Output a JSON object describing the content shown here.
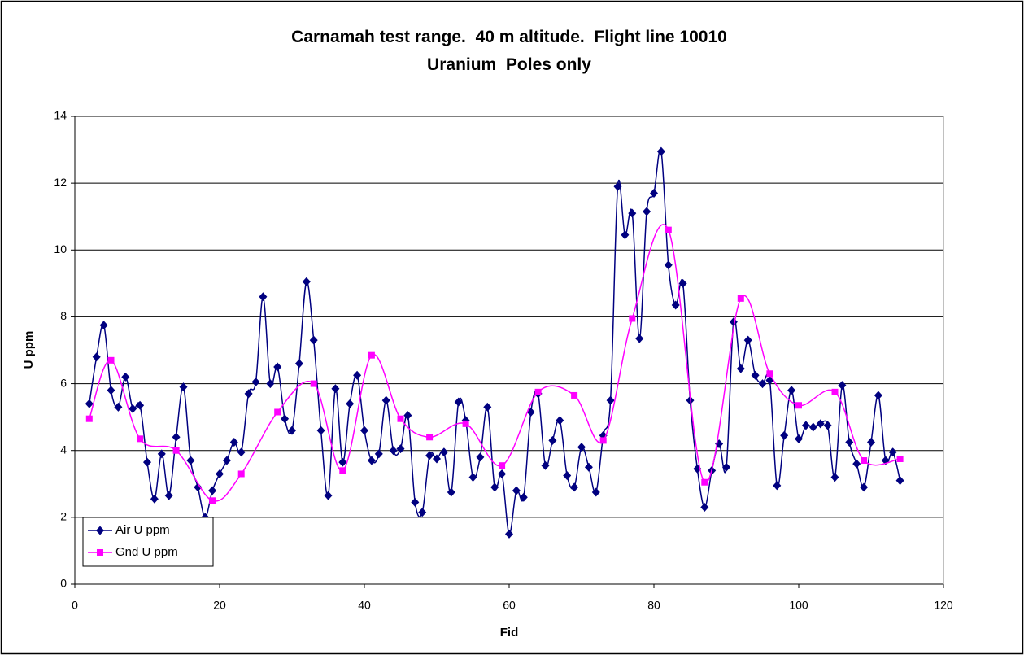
{
  "chart_data": {
    "type": "line",
    "title": "Carnamah test range.  40 m altitude.  Flight line 10010",
    "subtitle": "Uranium  Poles only",
    "x_label": "Fid",
    "y_label": "U ppm",
    "xlim": [
      0,
      120
    ],
    "xticks": [
      0,
      20,
      40,
      60,
      80,
      100,
      120
    ],
    "ylim": [
      0,
      14
    ],
    "yticks": [
      0,
      2,
      4,
      6,
      8,
      10,
      12,
      14
    ],
    "grid": true,
    "legend": "lower left",
    "series": [
      {
        "name": "Air U ppm",
        "color": "#000080",
        "marker": "diamond",
        "x": [
          2,
          3,
          4,
          5,
          6,
          7,
          8,
          9,
          10,
          11,
          12,
          13,
          14,
          15,
          16,
          17,
          18,
          19,
          20,
          21,
          22,
          23,
          24,
          25,
          26,
          27,
          28,
          29,
          30,
          31,
          32,
          33,
          34,
          35,
          36,
          37,
          38,
          39,
          40,
          41,
          42,
          43,
          44,
          45,
          46,
          47,
          48,
          49,
          50,
          51,
          52,
          53,
          54,
          55,
          56,
          57,
          58,
          59,
          60,
          61,
          62,
          63,
          64,
          65,
          66,
          67,
          68,
          69,
          70,
          71,
          72,
          73,
          74,
          75,
          76,
          77,
          78,
          79,
          80,
          81,
          82,
          83,
          84,
          85,
          86,
          87,
          88,
          89,
          90,
          91,
          92,
          93,
          94,
          95,
          96,
          97,
          98,
          99,
          100,
          101,
          102,
          103,
          104,
          105,
          106,
          107,
          108,
          109,
          110,
          111,
          112,
          113,
          114
        ],
        "values": [
          5.4,
          6.8,
          7.75,
          5.8,
          5.3,
          6.2,
          5.25,
          5.35,
          3.65,
          2.55,
          3.9,
          2.65,
          4.4,
          5.9,
          3.7,
          2.9,
          2.0,
          2.8,
          3.3,
          3.7,
          4.25,
          3.95,
          5.7,
          6.05,
          8.6,
          6.0,
          6.5,
          4.95,
          4.6,
          6.6,
          9.05,
          7.3,
          4.6,
          2.65,
          5.85,
          3.65,
          5.4,
          6.25,
          4.6,
          3.7,
          3.9,
          5.5,
          4.0,
          4.05,
          5.05,
          2.45,
          2.15,
          3.85,
          3.75,
          3.95,
          2.75,
          5.45,
          4.9,
          3.2,
          3.8,
          5.3,
          2.9,
          3.3,
          1.5,
          2.8,
          2.6,
          5.15,
          5.7,
          3.55,
          4.3,
          4.9,
          3.25,
          2.9,
          4.1,
          3.5,
          2.75,
          4.45,
          5.5,
          11.9,
          10.45,
          11.1,
          7.35,
          11.15,
          11.7,
          12.95,
          9.55,
          8.35,
          9.0,
          5.5,
          3.45,
          2.3,
          3.4,
          4.2,
          3.5,
          7.85,
          6.45,
          7.3,
          6.25,
          6.0,
          6.1,
          2.95,
          4.45,
          5.8,
          4.35,
          4.75,
          4.7,
          4.8,
          4.75,
          3.2,
          5.95,
          4.25,
          3.6,
          2.9,
          4.25,
          5.65,
          3.7,
          3.95,
          3.1
        ]
      },
      {
        "name": "Gnd U ppm",
        "color": "#ff00ff",
        "marker": "square",
        "x": [
          2,
          5,
          9,
          14,
          19,
          23,
          28,
          33,
          37,
          41,
          45,
          49,
          54,
          59,
          64,
          69,
          73,
          77,
          82,
          87,
          92,
          96,
          100,
          105,
          109,
          114
        ],
        "values": [
          4.95,
          6.7,
          4.35,
          4.0,
          2.5,
          3.3,
          5.15,
          6.0,
          3.4,
          6.85,
          4.95,
          4.4,
          4.8,
          3.55,
          5.75,
          5.65,
          4.3,
          7.95,
          10.6,
          3.05,
          8.55,
          6.3,
          5.35,
          5.75,
          3.7,
          3.75
        ]
      }
    ]
  }
}
